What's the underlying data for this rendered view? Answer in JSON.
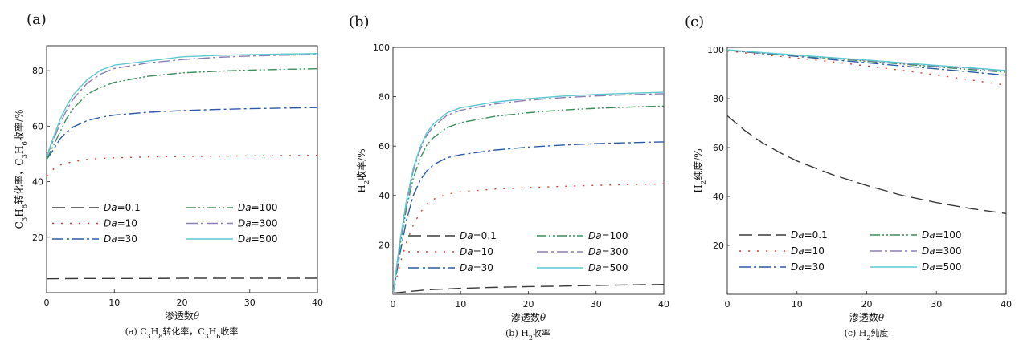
{
  "panels": [
    {
      "label": "(a)",
      "ylabel_parts": [
        {
          "t": "C",
          "sub": false
        },
        {
          "t": "3",
          "sub": true
        },
        {
          "t": "H",
          "sub": false
        },
        {
          "t": "8",
          "sub": true
        },
        {
          "t": "转化率，C",
          "sub": false
        },
        {
          "t": "3",
          "sub": true
        },
        {
          "t": "H",
          "sub": false
        },
        {
          "t": "6",
          "sub": true
        },
        {
          "t": "收率/%",
          "sub": false
        }
      ],
      "xlabel_text": "渗透数",
      "xlabel_symbol": "θ",
      "caption_parts": [
        {
          "t": "(a) C",
          "sub": false
        },
        {
          "t": "3",
          "sub": true
        },
        {
          "t": "H",
          "sub": false
        },
        {
          "t": "8",
          "sub": true
        },
        {
          "t": "转化率，C",
          "sub": false
        },
        {
          "t": "3",
          "sub": true
        },
        {
          "t": "H",
          "sub": false
        },
        {
          "t": "6",
          "sub": true
        },
        {
          "t": "收率",
          "sub": false
        }
      ]
    },
    {
      "label": "(b)",
      "ylabel_parts": [
        {
          "t": "H",
          "sub": false
        },
        {
          "t": "2",
          "sub": true
        },
        {
          "t": "收率/%",
          "sub": false
        }
      ],
      "xlabel_text": "渗透数",
      "xlabel_symbol": "θ",
      "caption_parts": [
        {
          "t": "(b) H",
          "sub": false
        },
        {
          "t": "2",
          "sub": true
        },
        {
          "t": "收率",
          "sub": false
        }
      ]
    },
    {
      "label": "(c)",
      "ylabel_parts": [
        {
          "t": "H",
          "sub": false
        },
        {
          "t": "2",
          "sub": true
        },
        {
          "t": "纯度/%",
          "sub": false
        }
      ],
      "xlabel_text": "渗透数",
      "xlabel_symbol": "θ",
      "caption_parts": [
        {
          "t": "(c) H",
          "sub": false
        },
        {
          "t": "2",
          "sub": true
        },
        {
          "t": "纯度",
          "sub": false
        }
      ]
    }
  ],
  "chart_data": [
    {
      "type": "line",
      "xlim": [
        0,
        40
      ],
      "ylim": [
        0,
        89
      ],
      "xticks": [
        0,
        10,
        20,
        30,
        40
      ],
      "yticks": [
        20,
        40,
        60,
        80
      ],
      "legend_placement": "lower-center",
      "legend_order": [
        0,
        3,
        1,
        4,
        2,
        5
      ],
      "series": [
        {
          "name": "Da=0.1",
          "name_prefix": "Da",
          "name_value": "=0.1",
          "color": "#3a3a3a",
          "dash": "16 7",
          "x": [
            0,
            5,
            10,
            15,
            20,
            25,
            30,
            35,
            40
          ],
          "y": [
            5.0,
            5.1,
            5.1,
            5.1,
            5.2,
            5.2,
            5.2,
            5.2,
            5.2
          ]
        },
        {
          "name": "Da=10",
          "name_prefix": "Da",
          "name_value": "=10",
          "color": "#e23a2e",
          "dash": "2 9",
          "x": [
            0,
            1,
            2,
            4,
            6,
            8,
            10,
            15,
            20,
            25,
            30,
            35,
            40
          ],
          "y": [
            42.0,
            44.5,
            46.0,
            47.3,
            48.0,
            48.4,
            48.6,
            48.9,
            49.1,
            49.2,
            49.3,
            49.4,
            49.5
          ]
        },
        {
          "name": "Da=30",
          "name_prefix": "Da",
          "name_value": "=30",
          "color": "#2b5aa8",
          "dash": "14 4 3 4",
          "x": [
            0,
            1,
            2,
            3,
            4,
            6,
            8,
            10,
            15,
            20,
            25,
            30,
            35,
            40
          ],
          "y": [
            48.0,
            51.5,
            55.5,
            58.0,
            59.8,
            62.0,
            63.2,
            64.0,
            65.0,
            65.6,
            66.0,
            66.3,
            66.5,
            66.7
          ]
        },
        {
          "name": "Da=100",
          "name_prefix": "Da",
          "name_value": "=100",
          "color": "#3a8f5a",
          "dash": "12 3 2 3 2 3",
          "x": [
            0,
            1,
            2,
            3,
            4,
            6,
            8,
            10,
            15,
            20,
            25,
            30,
            35,
            40
          ],
          "y": [
            48.0,
            53.0,
            58.0,
            63.0,
            66.5,
            71.5,
            74.0,
            75.8,
            78.0,
            79.2,
            79.8,
            80.2,
            80.5,
            80.7
          ]
        },
        {
          "name": "Da=300",
          "name_prefix": "Da",
          "name_value": "=300",
          "color": "#8b7db5",
          "dash": "14 4 3 4",
          "x": [
            0,
            1,
            2,
            3,
            4,
            6,
            8,
            10,
            15,
            20,
            25,
            30,
            35,
            40
          ],
          "y": [
            49.0,
            55.0,
            61.0,
            66.0,
            70.0,
            75.5,
            78.8,
            80.8,
            82.8,
            84.0,
            84.8,
            85.3,
            85.6,
            85.8
          ]
        },
        {
          "name": "Da=500",
          "name_prefix": "Da",
          "name_value": "=500",
          "color": "#5bc8d2",
          "dash": "",
          "x": [
            0,
            1,
            2,
            3,
            4,
            6,
            8,
            10,
            15,
            20,
            25,
            30,
            35,
            40
          ],
          "y": [
            49.0,
            56.0,
            62.5,
            67.5,
            71.5,
            76.8,
            80.2,
            82.0,
            83.5,
            85.0,
            85.5,
            85.8,
            86.0,
            86.2
          ]
        }
      ]
    },
    {
      "type": "line",
      "xlim": [
        0,
        40
      ],
      "ylim": [
        0,
        100
      ],
      "xticks": [
        0,
        10,
        20,
        30,
        40
      ],
      "yticks": [
        20,
        40,
        60,
        80,
        100
      ],
      "legend_placement": "bottom",
      "legend_order": [
        0,
        3,
        1,
        4,
        2,
        5
      ],
      "series": [
        {
          "name": "Da=0.1",
          "name_prefix": "Da",
          "name_value": "=0.1",
          "color": "#3a3a3a",
          "dash": "16 7",
          "x": [
            0,
            5,
            10,
            15,
            20,
            25,
            30,
            35,
            40
          ],
          "y": [
            0.5,
            1.8,
            2.4,
            2.8,
            3.1,
            3.3,
            3.6,
            3.8,
            4.0
          ]
        },
        {
          "name": "Da=10",
          "name_prefix": "Da",
          "name_value": "=10",
          "color": "#e23a2e",
          "dash": "2 9",
          "x": [
            0,
            1,
            2,
            3,
            4,
            5,
            6,
            8,
            10,
            15,
            20,
            25,
            30,
            35,
            40
          ],
          "y": [
            0,
            12,
            21,
            28,
            33,
            36.5,
            38.5,
            40.5,
            41.5,
            42.6,
            43.2,
            43.7,
            44.1,
            44.4,
            44.7
          ]
        },
        {
          "name": "Da=30",
          "name_prefix": "Da",
          "name_value": "=30",
          "color": "#2b5aa8",
          "dash": "14 4 3 4",
          "x": [
            0,
            1,
            2,
            3,
            4,
            5,
            6,
            8,
            10,
            15,
            20,
            25,
            30,
            35,
            40
          ],
          "y": [
            0,
            16,
            30,
            40,
            46,
            50,
            52.5,
            55.3,
            56.5,
            58.4,
            59.6,
            60.4,
            61.0,
            61.4,
            61.7
          ]
        },
        {
          "name": "Da=100",
          "name_prefix": "Da",
          "name_value": "=100",
          "color": "#3a8f5a",
          "dash": "12 3 2 3 2 3",
          "x": [
            0,
            1,
            2,
            3,
            4,
            5,
            6,
            8,
            10,
            15,
            20,
            25,
            30,
            35,
            40
          ],
          "y": [
            0,
            19,
            35,
            47,
            55,
            60.5,
            63.5,
            67.5,
            69.5,
            72.0,
            73.5,
            74.6,
            75.3,
            75.8,
            76.2
          ]
        },
        {
          "name": "Da=300",
          "name_prefix": "Da",
          "name_value": "=300",
          "color": "#8b7db5",
          "dash": "14 4 3 4",
          "x": [
            0,
            1,
            2,
            3,
            4,
            5,
            6,
            8,
            10,
            15,
            20,
            25,
            30,
            35,
            40
          ],
          "y": [
            0,
            20,
            37,
            50,
            58.5,
            64.5,
            68,
            72.5,
            74.5,
            77.0,
            78.6,
            79.6,
            80.3,
            80.8,
            81.2
          ]
        },
        {
          "name": "Da=500",
          "name_prefix": "Da",
          "name_value": "=500",
          "color": "#5bc8d2",
          "dash": "",
          "x": [
            0,
            1,
            2,
            3,
            4,
            5,
            6,
            8,
            10,
            15,
            20,
            25,
            30,
            35,
            40
          ],
          "y": [
            0,
            21,
            38,
            51,
            59.5,
            65.5,
            69,
            73.5,
            75.5,
            77.8,
            79.2,
            80.2,
            80.9,
            81.4,
            81.8
          ]
        }
      ]
    },
    {
      "type": "line",
      "xlim": [
        0,
        40
      ],
      "ylim": [
        0,
        101
      ],
      "xticks": [
        0,
        10,
        20,
        30,
        40
      ],
      "yticks": [
        20,
        40,
        60,
        80,
        100
      ],
      "legend_placement": "bottom",
      "legend_order": [
        0,
        3,
        1,
        4,
        2,
        5
      ],
      "series": [
        {
          "name": "Da=0.1",
          "name_prefix": "Da",
          "name_value": "=0.1",
          "color": "#3a3a3a",
          "dash": "16 7",
          "x": [
            0,
            2.5,
            5,
            7.5,
            10,
            15,
            20,
            25,
            30,
            35,
            40
          ],
          "y": [
            73.0,
            67.0,
            62.0,
            58.0,
            54.5,
            49.0,
            44.5,
            40.5,
            37.5,
            35.0,
            33.0
          ]
        },
        {
          "name": "Da=10",
          "name_prefix": "Da",
          "name_value": "=10",
          "color": "#e23a2e",
          "dash": "2 9",
          "x": [
            0,
            5,
            10,
            15,
            20,
            25,
            30,
            35,
            40
          ],
          "y": [
            99.5,
            98.0,
            96.6,
            95.1,
            93.4,
            91.6,
            89.7,
            87.6,
            85.5
          ]
        },
        {
          "name": "Da=30",
          "name_prefix": "Da",
          "name_value": "=30",
          "color": "#2b5aa8",
          "dash": "14 4 3 4",
          "x": [
            0,
            5,
            10,
            15,
            20,
            25,
            30,
            35,
            40
          ],
          "y": [
            99.8,
            98.5,
            97.3,
            96.0,
            94.7,
            93.4,
            92.2,
            90.9,
            89.6
          ]
        },
        {
          "name": "Da=100",
          "name_prefix": "Da",
          "name_value": "=100",
          "color": "#3a8f5a",
          "dash": "12 3 2 3 2 3",
          "x": [
            0,
            5,
            10,
            15,
            20,
            25,
            30,
            35,
            40
          ],
          "y": [
            99.8,
            98.7,
            97.6,
            96.5,
            95.3,
            94.2,
            93.0,
            91.9,
            90.8
          ]
        },
        {
          "name": "Da=300",
          "name_prefix": "Da",
          "name_value": "=300",
          "color": "#8b7db5",
          "dash": "14 4 3 4",
          "x": [
            0,
            5,
            10,
            15,
            20,
            25,
            30,
            35,
            40
          ],
          "y": [
            99.9,
            98.8,
            97.7,
            96.7,
            95.6,
            94.5,
            93.4,
            92.4,
            91.3
          ]
        },
        {
          "name": "Da=500",
          "name_prefix": "Da",
          "name_value": "=500",
          "color": "#5bc8d2",
          "dash": "",
          "x": [
            0,
            5,
            10,
            15,
            20,
            25,
            30,
            35,
            40
          ],
          "y": [
            100.0,
            98.9,
            97.8,
            96.8,
            95.8,
            94.7,
            93.6,
            92.6,
            91.5
          ]
        }
      ]
    }
  ]
}
